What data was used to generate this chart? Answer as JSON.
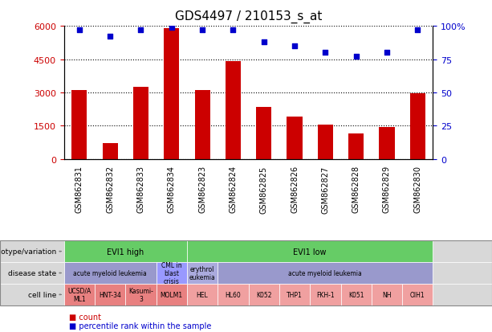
{
  "title": "GDS4497 / 210153_s_at",
  "samples": [
    "GSM862831",
    "GSM862832",
    "GSM862833",
    "GSM862834",
    "GSM862823",
    "GSM862824",
    "GSM862825",
    "GSM862826",
    "GSM862827",
    "GSM862828",
    "GSM862829",
    "GSM862830"
  ],
  "counts": [
    3100,
    700,
    3250,
    5900,
    3100,
    4400,
    2350,
    1900,
    1550,
    1150,
    1450,
    2950
  ],
  "percentiles": [
    97,
    92,
    97,
    99,
    97,
    97,
    88,
    85,
    80,
    77,
    80,
    97
  ],
  "bar_color": "#cc0000",
  "dot_color": "#0000cc",
  "ylim_left": [
    0,
    6000
  ],
  "ylim_right": [
    0,
    100
  ],
  "yticks_left": [
    0,
    1500,
    3000,
    4500,
    6000
  ],
  "yticks_right": [
    0,
    25,
    50,
    75,
    100
  ],
  "genotype_groups": [
    {
      "label": "EVI1 high",
      "start": 0,
      "end": 4,
      "color": "#66cc66"
    },
    {
      "label": "EVI1 low",
      "start": 4,
      "end": 12,
      "color": "#66cc66"
    }
  ],
  "disease_groups": [
    {
      "label": "acute myeloid leukemia",
      "start": 0,
      "end": 3,
      "color": "#9999cc"
    },
    {
      "label": "CML in\nblast\ncrisis",
      "start": 3,
      "end": 4,
      "color": "#9999ff"
    },
    {
      "label": "erythrol\neukemia",
      "start": 4,
      "end": 5,
      "color": "#aaaadd"
    },
    {
      "label": "acute myeloid leukemia",
      "start": 5,
      "end": 12,
      "color": "#9999cc"
    }
  ],
  "cell_lines": [
    {
      "label": "UCSD/A\nML1",
      "start": 0,
      "end": 1,
      "color": "#e88080"
    },
    {
      "label": "HNT-34",
      "start": 1,
      "end": 2,
      "color": "#e88080"
    },
    {
      "label": "Kasumi-\n3",
      "start": 2,
      "end": 3,
      "color": "#e88080"
    },
    {
      "label": "MOLM1",
      "start": 3,
      "end": 4,
      "color": "#e88080"
    },
    {
      "label": "HEL",
      "start": 4,
      "end": 5,
      "color": "#f0a0a0"
    },
    {
      "label": "HL60",
      "start": 5,
      "end": 6,
      "color": "#f0a0a0"
    },
    {
      "label": "K052",
      "start": 6,
      "end": 7,
      "color": "#f0a0a0"
    },
    {
      "label": "THP1",
      "start": 7,
      "end": 8,
      "color": "#f0a0a0"
    },
    {
      "label": "FKH-1",
      "start": 8,
      "end": 9,
      "color": "#f0a0a0"
    },
    {
      "label": "K051",
      "start": 9,
      "end": 10,
      "color": "#f0a0a0"
    },
    {
      "label": "NH",
      "start": 10,
      "end": 11,
      "color": "#f0a0a0"
    },
    {
      "label": "OIH1",
      "start": 11,
      "end": 12,
      "color": "#f0a0a0"
    }
  ],
  "row_labels": [
    "genotype/variation",
    "disease state",
    "cell line"
  ],
  "legend_items": [
    {
      "color": "#cc0000",
      "label": "count"
    },
    {
      "color": "#0000cc",
      "label": "percentile rank within the sample"
    }
  ],
  "bg_color": "#f0f0f0",
  "title_fontsize": 11,
  "tick_label_fontsize": 7,
  "annotation_fontsize": 7
}
